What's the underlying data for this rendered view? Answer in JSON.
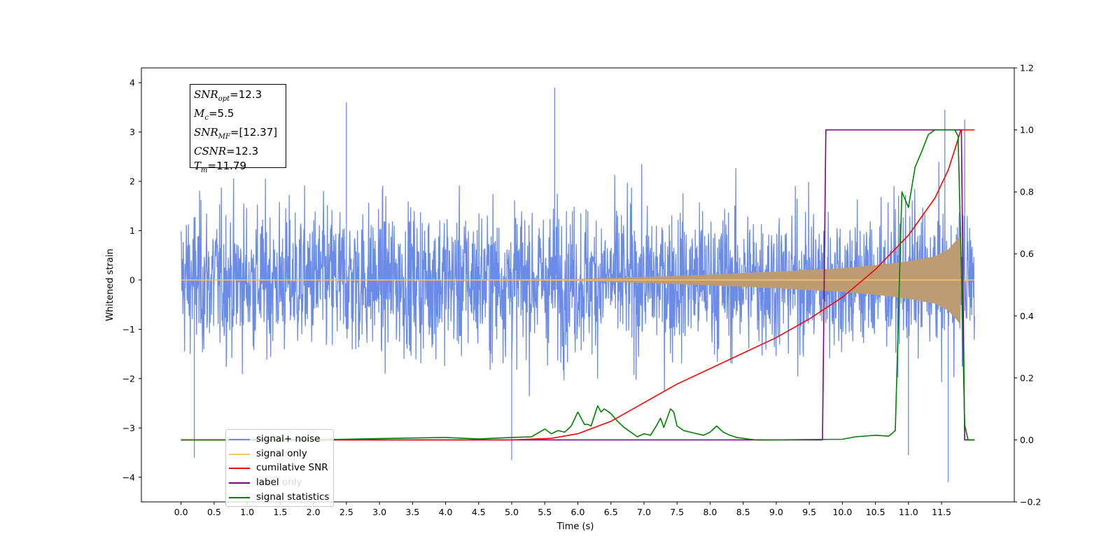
{
  "chart_data": {
    "type": "line",
    "xlabel": "Time (s)",
    "ylabel": "Whitened strain",
    "xlim": [
      -0.6,
      12.6
    ],
    "ylim": [
      -4.5,
      4.3
    ],
    "y2lim": [
      -0.2,
      1.2
    ],
    "x_ticks": [
      "0.0",
      "0.5",
      "1.0",
      "1.5",
      "2.0",
      "2.5",
      "3.0",
      "3.5",
      "4.0",
      "4.5",
      "5.0",
      "5.5",
      "6.0",
      "6.5",
      "7.0",
      "7.5",
      "8.0",
      "8.5",
      "9.0",
      "9.5",
      "10.0",
      "10.5",
      "11.0",
      "11.5"
    ],
    "y_ticks": [
      "4",
      "3",
      "2",
      "1",
      "0",
      "−1",
      "−2",
      "−3",
      "−4"
    ],
    "y2_ticks": [
      "1.2",
      "1.0",
      "0.8",
      "0.6",
      "0.4",
      "0.2",
      "0.0",
      "−0.2"
    ],
    "noise": {
      "x_start": 0.0,
      "x_end": 12.0,
      "typical_abs": 1.5,
      "spikes": [
        [
          0.2,
          -3.6
        ],
        [
          2.5,
          3.6
        ],
        [
          5.0,
          -3.65
        ],
        [
          5.65,
          3.9
        ],
        [
          11.0,
          -3.55
        ],
        [
          11.6,
          -4.1
        ],
        [
          11.55,
          3.45
        ],
        [
          11.85,
          3.25
        ]
      ]
    },
    "signal_envelope": [
      [
        0.0,
        0.0
      ],
      [
        4.0,
        0.003
      ],
      [
        6.0,
        0.02
      ],
      [
        7.0,
        0.06
      ],
      [
        8.0,
        0.11
      ],
      [
        9.0,
        0.17
      ],
      [
        10.0,
        0.24
      ],
      [
        10.5,
        0.3
      ],
      [
        11.0,
        0.38
      ],
      [
        11.4,
        0.48
      ],
      [
        11.6,
        0.62
      ],
      [
        11.72,
        0.8
      ],
      [
        11.78,
        0.9
      ],
      [
        11.8,
        0.0
      ],
      [
        12.0,
        0.0
      ]
    ],
    "cumulative_snr": {
      "x": [
        0.0,
        5.0,
        5.6,
        6.0,
        6.5,
        7.0,
        7.5,
        8.0,
        8.5,
        9.0,
        9.5,
        10.0,
        10.5,
        11.0,
        11.4,
        11.6,
        11.72,
        11.79,
        12.0
      ],
      "y": [
        0.0,
        0.0,
        0.005,
        0.02,
        0.06,
        0.12,
        0.18,
        0.23,
        0.28,
        0.33,
        0.39,
        0.46,
        0.55,
        0.66,
        0.78,
        0.87,
        0.95,
        1.0,
        1.0
      ]
    },
    "label_series": {
      "x": [
        0.0,
        9.7,
        9.75,
        11.8,
        11.85,
        12.0
      ],
      "y": [
        0.0,
        0.0,
        1.0,
        1.0,
        0.0,
        0.0
      ]
    },
    "signal_statistics": {
      "x": [
        0.0,
        2.0,
        3.2,
        4.0,
        4.5,
        5.0,
        5.3,
        5.5,
        5.6,
        5.7,
        5.8,
        5.9,
        6.0,
        6.1,
        6.15,
        6.2,
        6.3,
        6.35,
        6.4,
        6.5,
        6.6,
        6.7,
        6.8,
        6.9,
        7.0,
        7.1,
        7.2,
        7.25,
        7.3,
        7.4,
        7.45,
        7.5,
        7.6,
        7.7,
        7.8,
        7.9,
        8.0,
        8.1,
        8.2,
        8.3,
        8.4,
        8.5,
        8.6,
        8.7,
        9.0,
        10.0,
        10.2,
        10.5,
        10.7,
        10.8,
        10.9,
        11.0,
        11.1,
        11.2,
        11.3,
        11.4,
        11.5,
        11.6,
        11.7,
        11.75,
        11.8,
        11.85,
        11.9,
        12.0
      ],
      "y": [
        0.0,
        0.0,
        0.005,
        0.008,
        0.003,
        0.008,
        0.01,
        0.035,
        0.02,
        0.03,
        0.025,
        0.045,
        0.09,
        0.05,
        0.05,
        0.045,
        0.11,
        0.09,
        0.1,
        0.085,
        0.06,
        0.04,
        0.025,
        0.01,
        0.02,
        0.015,
        0.05,
        0.07,
        0.04,
        0.1,
        0.09,
        0.045,
        0.03,
        0.025,
        0.02,
        0.015,
        0.025,
        0.045,
        0.025,
        0.015,
        0.008,
        0.005,
        0.002,
        0.0,
        0.0,
        0.002,
        0.01,
        0.015,
        0.012,
        0.03,
        0.8,
        0.75,
        0.88,
        0.93,
        0.985,
        1.0,
        1.0,
        1.0,
        1.0,
        0.98,
        0.55,
        0.05,
        0.0,
        0.0
      ]
    },
    "series": [
      {
        "name": "signal+ noise",
        "color": "#6b8be8"
      },
      {
        "name": "signal only",
        "color": "#f7c46c"
      },
      {
        "name": "cumilative SNR",
        "color": "#ff0000"
      },
      {
        "name": "label",
        "color": "#800080"
      },
      {
        "name": "signal statistics",
        "color": "#008000"
      }
    ],
    "legend_ghost_text": [
      "signal only",
      "label only",
      "signal statistics"
    ],
    "annotation_lines": [
      {
        "id": "snr_opt",
        "name": "SNR",
        "sub": "opt",
        "value": "=12.3"
      },
      {
        "id": "mc",
        "name": "M",
        "sub": "c",
        "value": "=5.5"
      },
      {
        "id": "snr_mf",
        "name": "SNR",
        "sub": "MF",
        "value": "=[12.37]"
      },
      {
        "id": "csnr",
        "name": "CSNR",
        "sub": "",
        "value": "=12.3"
      },
      {
        "id": "tm",
        "name": "T",
        "sub": "m",
        "value": "=11.79"
      }
    ],
    "legend_placement": "lower-left",
    "grid": false
  }
}
